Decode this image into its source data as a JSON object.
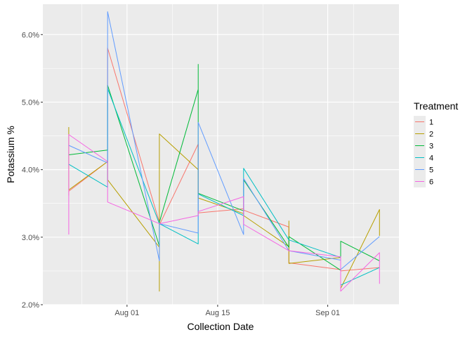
{
  "chart_data": {
    "type": "line",
    "title": "",
    "xlabel": "Collection Date",
    "ylabel": "Potassium %",
    "x_tick_labels": [
      "Aug 01",
      "Aug 15",
      "Sep 01"
    ],
    "x_tick_dates": [
      "2019-08-01",
      "2019-08-15",
      "2019-09-01"
    ],
    "y_tick_labels": [
      "2.0%",
      "3.0%",
      "4.0%",
      "5.0%",
      "6.0%"
    ],
    "y_ticks": [
      2.0,
      3.0,
      4.0,
      5.0,
      6.0
    ],
    "xlim": [
      "2019-07-19",
      "2019-09-12"
    ],
    "ylim": [
      2.0,
      6.45
    ],
    "grid": true,
    "legend": {
      "title": "Treatment",
      "position": "right"
    },
    "series": [
      {
        "name": "1",
        "color": "#F8766D",
        "points": [
          [
            "2019-07-23",
            3.62
          ],
          [
            "2019-07-23",
            3.68
          ],
          [
            "2019-07-29",
            4.12
          ],
          [
            "2019-07-29",
            5.8
          ],
          [
            "2019-08-06",
            3.22
          ],
          [
            "2019-08-06",
            3.18
          ],
          [
            "2019-08-12",
            4.38
          ],
          [
            "2019-08-12",
            3.36
          ],
          [
            "2019-08-19",
            3.42
          ],
          [
            "2019-08-19",
            3.4
          ],
          [
            "2019-08-26",
            3.15
          ],
          [
            "2019-08-26",
            2.62
          ],
          [
            "2019-09-03",
            2.52
          ],
          [
            "2019-09-03",
            2.5
          ],
          [
            "2019-09-09",
            2.55
          ]
        ]
      },
      {
        "name": "2",
        "color": "#B79F00",
        "points": [
          [
            "2019-07-23",
            4.63
          ],
          [
            "2019-07-23",
            3.7
          ],
          [
            "2019-07-29",
            4.12
          ],
          [
            "2019-07-29",
            3.85
          ],
          [
            "2019-08-06",
            2.85
          ],
          [
            "2019-08-06",
            2.2
          ],
          [
            "2019-08-06",
            4.53
          ],
          [
            "2019-08-12",
            4.0
          ],
          [
            "2019-08-12",
            3.58
          ],
          [
            "2019-08-19",
            3.35
          ],
          [
            "2019-08-19",
            3.32
          ],
          [
            "2019-08-26",
            2.86
          ],
          [
            "2019-08-26",
            3.24
          ],
          [
            "2019-08-26",
            2.61
          ],
          [
            "2019-09-03",
            2.7
          ],
          [
            "2019-09-03",
            2.24
          ],
          [
            "2019-09-09",
            3.41
          ],
          [
            "2019-09-09",
            3.02
          ]
        ]
      },
      {
        "name": "3",
        "color": "#00BA38",
        "points": [
          [
            "2019-07-23",
            4.22
          ],
          [
            "2019-07-29",
            4.29
          ],
          [
            "2019-07-29",
            5.25
          ],
          [
            "2019-08-06",
            2.87
          ],
          [
            "2019-08-06",
            3.22
          ],
          [
            "2019-08-12",
            5.19
          ],
          [
            "2019-08-12",
            5.56
          ],
          [
            "2019-08-12",
            3.65
          ],
          [
            "2019-08-19",
            3.39
          ],
          [
            "2019-08-19",
            3.85
          ],
          [
            "2019-08-26",
            2.85
          ],
          [
            "2019-08-26",
            3.01
          ],
          [
            "2019-09-03",
            2.51
          ],
          [
            "2019-09-03",
            2.94
          ],
          [
            "2019-09-09",
            2.65
          ]
        ]
      },
      {
        "name": "4",
        "color": "#00BFC4",
        "points": [
          [
            "2019-07-23",
            4.08
          ],
          [
            "2019-07-29",
            3.74
          ],
          [
            "2019-07-29",
            5.2
          ],
          [
            "2019-08-06",
            3.2
          ],
          [
            "2019-08-12",
            2.9
          ],
          [
            "2019-08-12",
            3.64
          ],
          [
            "2019-08-19",
            3.32
          ],
          [
            "2019-08-19",
            4.02
          ],
          [
            "2019-08-26",
            2.96
          ],
          [
            "2019-09-03",
            2.7
          ],
          [
            "2019-09-03",
            2.29
          ],
          [
            "2019-09-09",
            2.55
          ]
        ]
      },
      {
        "name": "5",
        "color": "#619CFF",
        "points": [
          [
            "2019-07-23",
            4.36
          ],
          [
            "2019-07-29",
            4.1
          ],
          [
            "2019-07-29",
            6.34
          ],
          [
            "2019-08-06",
            2.65
          ],
          [
            "2019-08-06",
            3.2
          ],
          [
            "2019-08-12",
            3.06
          ],
          [
            "2019-08-12",
            4.7
          ],
          [
            "2019-08-19",
            3.04
          ],
          [
            "2019-08-19",
            3.87
          ],
          [
            "2019-08-26",
            2.8
          ],
          [
            "2019-09-03",
            2.66
          ],
          [
            "2019-09-03",
            2.52
          ],
          [
            "2019-09-09",
            3.01
          ]
        ]
      },
      {
        "name": "6",
        "color": "#F564E3",
        "points": [
          [
            "2019-07-23",
            3.04
          ],
          [
            "2019-07-23",
            4.52
          ],
          [
            "2019-07-29",
            4.12
          ],
          [
            "2019-07-29",
            3.52
          ],
          [
            "2019-08-06",
            3.2
          ],
          [
            "2019-08-12",
            3.32
          ],
          [
            "2019-08-12",
            3.38
          ],
          [
            "2019-08-19",
            3.6
          ],
          [
            "2019-08-19",
            3.19
          ],
          [
            "2019-08-26",
            2.8
          ],
          [
            "2019-09-03",
            2.71
          ],
          [
            "2019-09-03",
            2.2
          ],
          [
            "2019-09-09",
            2.77
          ],
          [
            "2019-09-09",
            2.31
          ]
        ]
      }
    ]
  }
}
